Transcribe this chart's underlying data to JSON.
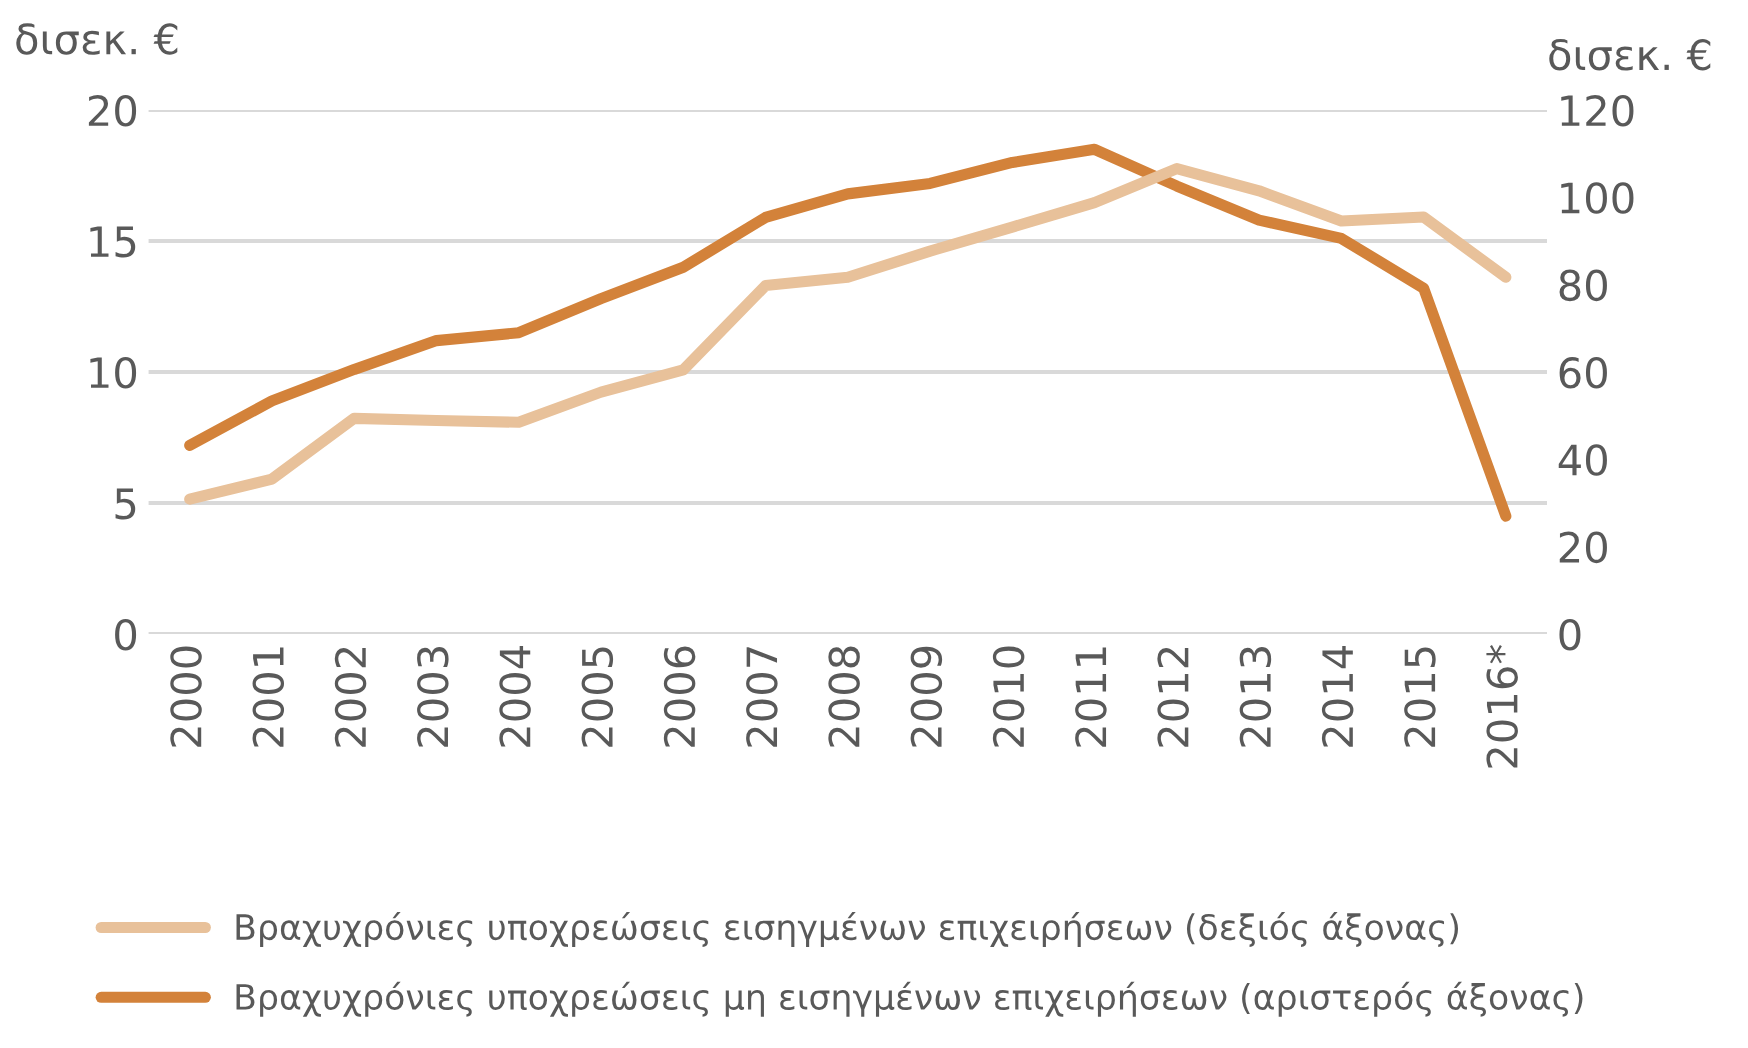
{
  "chart_data": {
    "type": "line",
    "ylabel": "δισεκ. €",
    "y2label": "δισεκ. €",
    "categories": [
      "2000",
      "2001",
      "2002",
      "2003",
      "2004",
      "2005",
      "2006",
      "2007",
      "2008",
      "2009",
      "2010",
      "2011",
      "2012",
      "2013",
      "2014",
      "2015",
      "2016*"
    ],
    "series": [
      {
        "name": "Βραχυχρόνιες υποχρεώσεις εισηγμένων επιχειρήσεων (δεξιός άξονας)",
        "color": "#e8c19a",
        "axis": "y2",
        "values": [
          30.9,
          35.5,
          49.4,
          48.9,
          48.5,
          55.4,
          60.5,
          79.8,
          81.7,
          87.7,
          93.2,
          98.8,
          106.6,
          101.5,
          94.6,
          95.5,
          81.7
        ]
      },
      {
        "name": "Βραχυχρόνιες υποχρεώσεις μη εισηγμένων επιχειρήσεων (αριστερός άξονας)",
        "color": "#d3823a",
        "axis": "y",
        "values": [
          7.2,
          8.9,
          10.1,
          11.2,
          11.5,
          12.8,
          14.0,
          15.9,
          16.8,
          17.2,
          18.0,
          18.5,
          17.1,
          15.8,
          15.1,
          13.2,
          4.5
        ]
      }
    ],
    "ylim": [
      0,
      20
    ],
    "yticks": [
      0,
      5,
      10,
      15,
      20
    ],
    "y2lim": [
      0,
      120
    ],
    "y2ticks": [
      0,
      20,
      40,
      60,
      80,
      100,
      120
    ],
    "grid": "y",
    "legend": "bottom",
    "line_style": "solid",
    "marker": "none"
  }
}
